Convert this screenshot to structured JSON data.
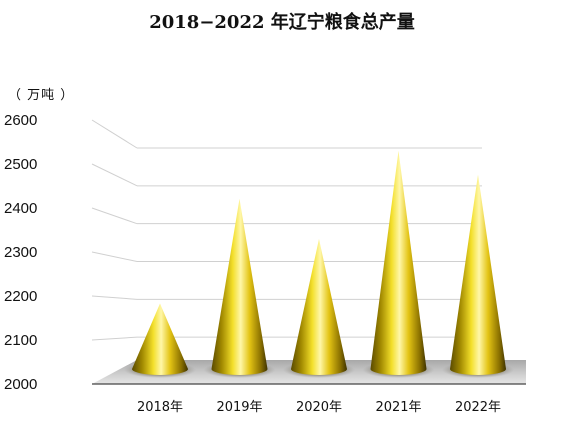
{
  "title": "2018−2022 年辽宁粮食总产量",
  "chart_data": {
    "type": "bar",
    "title": "2018−2022 年辽宁粮食总产量",
    "unit": "（ 万吨 ）",
    "categories": [
      "2018年",
      "2019年",
      "2020年",
      "2021年",
      "2022年"
    ],
    "values": [
      2192,
      2430,
      2339,
      2539,
      2485
    ],
    "ylim": [
      2000,
      2600
    ],
    "yticks": [
      2000,
      2100,
      2200,
      2300,
      2400,
      2500,
      2600
    ],
    "grid": true,
    "legend": "none"
  }
}
